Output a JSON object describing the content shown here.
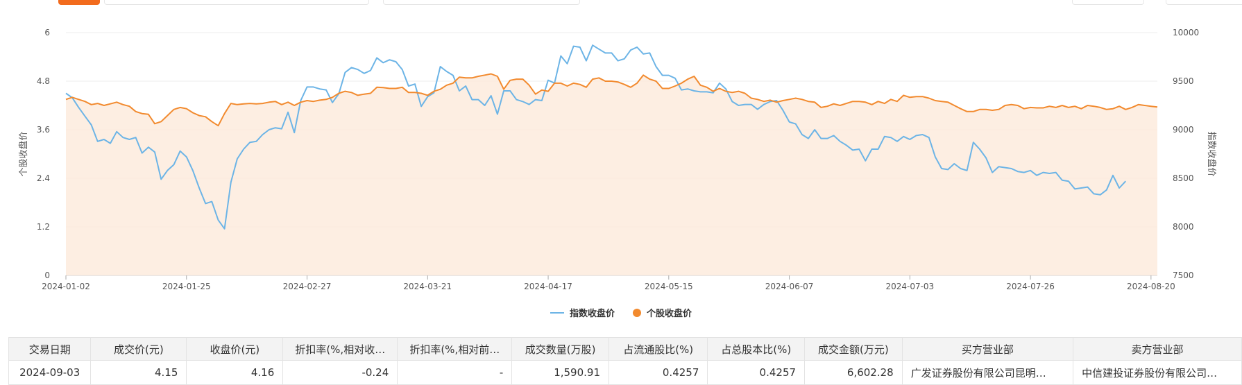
{
  "colors": {
    "index_line": "#6cb4e6",
    "stock_line": "#f28a2e",
    "area_fill": "#fdebdd",
    "grid": "#ececec",
    "axis_text": "#555555",
    "accent_tab": "#f26b1d"
  },
  "legend": {
    "index_label": "指数收盘价",
    "stock_label": "个股收盘价"
  },
  "chart_data": {
    "type": "line",
    "x_tick_labels": [
      "2024-01-02",
      "2024-01-25",
      "2024-02-27",
      "2024-03-21",
      "2024-04-17",
      "2024-05-15",
      "2024-06-07",
      "2024-07-03",
      "2024-07-26",
      "2024-08-20"
    ],
    "left_axis": {
      "label": "个股收盘价",
      "ticks": [
        "0",
        "1.2",
        "2.4",
        "3.6",
        "4.8",
        "6"
      ],
      "range": [
        0,
        6
      ]
    },
    "right_axis": {
      "label": "指数收盘价",
      "ticks": [
        "7500",
        "8000",
        "8500",
        "9000",
        "9500",
        "10000"
      ],
      "range": [
        7500,
        10000
      ]
    },
    "grid": true,
    "legend_position": "bottom-center",
    "series": [
      {
        "name": "个股收盘价",
        "axis": "left",
        "area": true,
        "values": [
          4.35,
          4.4,
          4.35,
          4.3,
          4.22,
          4.25,
          4.2,
          4.24,
          4.28,
          4.22,
          4.18,
          4.05,
          4.0,
          3.98,
          3.75,
          3.8,
          3.95,
          4.1,
          4.15,
          4.12,
          4.02,
          3.95,
          3.92,
          3.8,
          3.7,
          4.0,
          4.25,
          4.22,
          4.24,
          4.25,
          4.24,
          4.25,
          4.28,
          4.3,
          4.22,
          4.28,
          4.2,
          4.28,
          4.32,
          4.3,
          4.33,
          4.35,
          4.4,
          4.5,
          4.55,
          4.52,
          4.45,
          4.48,
          4.5,
          4.65,
          4.64,
          4.62,
          4.62,
          4.65,
          4.52,
          4.52,
          4.5,
          4.45,
          4.55,
          4.6,
          4.7,
          4.75,
          4.9,
          4.88,
          4.88,
          4.92,
          4.95,
          4.98,
          4.92,
          4.6,
          4.82,
          4.85,
          4.85,
          4.7,
          4.48,
          4.58,
          4.55,
          4.75,
          4.75,
          4.68,
          4.75,
          4.72,
          4.65,
          4.85,
          4.88,
          4.8,
          4.8,
          4.78,
          4.72,
          4.65,
          4.75,
          4.95,
          4.85,
          4.8,
          4.62,
          4.62,
          4.68,
          4.75,
          4.85,
          4.92,
          4.7,
          4.65,
          4.55,
          4.62,
          4.55,
          4.52,
          4.55,
          4.5,
          4.38,
          4.35,
          4.3,
          4.33,
          4.28,
          4.32,
          4.35,
          4.38,
          4.35,
          4.3,
          4.28,
          4.15,
          4.18,
          4.24,
          4.2,
          4.25,
          4.3,
          4.3,
          4.28,
          4.22,
          4.3,
          4.25,
          4.35,
          4.3,
          4.45,
          4.4,
          4.42,
          4.42,
          4.38,
          4.32,
          4.3,
          4.28,
          4.2,
          4.12,
          4.05,
          4.05,
          4.1,
          4.1,
          4.08,
          4.1,
          4.2,
          4.22,
          4.2,
          4.12,
          4.15,
          4.14,
          4.14,
          4.18,
          4.15,
          4.2,
          4.15,
          4.18,
          4.12,
          4.2,
          4.18,
          4.15,
          4.1,
          4.12,
          4.18,
          4.1,
          4.15,
          4.22,
          4.2,
          4.18,
          4.16
        ]
      },
      {
        "name": "指数收盘价",
        "axis": "right",
        "area": false,
        "values": [
          9375,
          9330,
          9230,
          9140,
          9050,
          8880,
          8900,
          8860,
          8980,
          8920,
          8900,
          8920,
          8760,
          8820,
          8770,
          8490,
          8580,
          8640,
          8780,
          8720,
          8580,
          8400,
          8240,
          8260,
          8070,
          7980,
          8460,
          8700,
          8800,
          8870,
          8880,
          8950,
          9000,
          9020,
          9010,
          9180,
          8970,
          9300,
          9440,
          9440,
          9420,
          9410,
          9280,
          9370,
          9590,
          9640,
          9620,
          9580,
          9610,
          9740,
          9690,
          9720,
          9700,
          9620,
          9450,
          9470,
          9240,
          9340,
          9380,
          9650,
          9600,
          9560,
          9400,
          9450,
          9310,
          9310,
          9250,
          9350,
          9160,
          9400,
          9400,
          9310,
          9290,
          9260,
          9310,
          9300,
          9510,
          9480,
          9760,
          9680,
          9860,
          9850,
          9710,
          9870,
          9830,
          9790,
          9790,
          9710,
          9730,
          9820,
          9850,
          9780,
          9790,
          9650,
          9560,
          9560,
          9530,
          9410,
          9420,
          9400,
          9390,
          9390,
          9380,
          9480,
          9420,
          9290,
          9250,
          9260,
          9260,
          9210,
          9260,
          9290,
          9300,
          9200,
          9080,
          9060,
          8950,
          8910,
          9000,
          8910,
          8910,
          8940,
          8880,
          8840,
          8790,
          8800,
          8680,
          8800,
          8800,
          8930,
          8920,
          8880,
          8930,
          8900,
          8940,
          8950,
          8920,
          8720,
          8600,
          8590,
          8650,
          8600,
          8580,
          8870,
          8800,
          8710,
          8560,
          8620,
          8610,
          8600,
          8570,
          8560,
          8580,
          8530,
          8560,
          8550,
          8560,
          8480,
          8470,
          8390,
          8400,
          8410,
          8340,
          8330,
          8380,
          8530,
          8400,
          8470
        ]
      }
    ]
  },
  "table": {
    "headers": [
      "交易日期",
      "成交价(元)",
      "收盘价(元)",
      "折扣率(%,相对收…",
      "折扣率(%,相对前…",
      "成交数量(万股)",
      "占流通股比(%)",
      "占总股本比(%)",
      "成交金额(万元)",
      "买方营业部",
      "卖方营业部"
    ],
    "rows": [
      [
        "2024-09-03",
        "4.15",
        "4.16",
        "-0.24",
        "-",
        "1,590.91",
        "0.4257",
        "0.4257",
        "6,602.28",
        "广发证券股份有限公司昆明…",
        "中信建投证券股份有限公司…"
      ]
    ]
  }
}
